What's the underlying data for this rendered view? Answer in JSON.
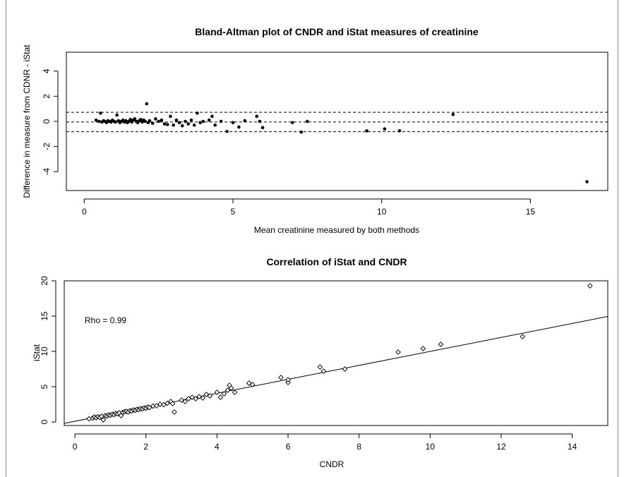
{
  "chart_data": [
    {
      "type": "scatter",
      "title": "Bland-Altman plot of CNDR and iStat measures of creatinine",
      "xlabel": "Mean creatinine measured by both methods",
      "ylabel": "Difference in measure from CDNR - iStat",
      "xlim": [
        -0.6,
        17.6
      ],
      "ylim": [
        -5.5,
        5.5
      ],
      "xticks": [
        0,
        5,
        10,
        15
      ],
      "yticks": [
        -4,
        -2,
        0,
        2,
        4
      ],
      "marker": "filled-circle",
      "color": "#000000",
      "reference_lines": [
        {
          "y": 0.72,
          "style": "dashed"
        },
        {
          "y": -0.05,
          "style": "dashed"
        },
        {
          "y": -0.82,
          "style": "dashed"
        }
      ],
      "points": [
        [
          0.4,
          0.1
        ],
        [
          0.5,
          0.0
        ],
        [
          0.55,
          0.65
        ],
        [
          0.6,
          -0.05
        ],
        [
          0.65,
          0.05
        ],
        [
          0.7,
          0.0
        ],
        [
          0.75,
          -0.1
        ],
        [
          0.8,
          0.05
        ],
        [
          0.85,
          0.0
        ],
        [
          0.9,
          -0.05
        ],
        [
          0.95,
          0.1
        ],
        [
          1.0,
          0.0
        ],
        [
          1.05,
          -0.05
        ],
        [
          1.1,
          0.5
        ],
        [
          1.15,
          0.05
        ],
        [
          1.2,
          -0.1
        ],
        [
          1.25,
          0.0
        ],
        [
          1.3,
          0.1
        ],
        [
          1.35,
          -0.05
        ],
        [
          1.4,
          0.05
        ],
        [
          1.45,
          -0.1
        ],
        [
          1.5,
          0.0
        ],
        [
          1.55,
          0.15
        ],
        [
          1.6,
          -0.05
        ],
        [
          1.65,
          0.1
        ],
        [
          1.7,
          0.2
        ],
        [
          1.75,
          0.0
        ],
        [
          1.8,
          -0.1
        ],
        [
          1.85,
          0.05
        ],
        [
          1.9,
          0.15
        ],
        [
          1.95,
          -0.05
        ],
        [
          2.0,
          0.1
        ],
        [
          2.05,
          0.0
        ],
        [
          2.1,
          1.4
        ],
        [
          2.15,
          -0.1
        ],
        [
          2.2,
          0.05
        ],
        [
          2.3,
          -0.15
        ],
        [
          2.4,
          0.2
        ],
        [
          2.5,
          0.0
        ],
        [
          2.6,
          0.1
        ],
        [
          2.7,
          -0.2
        ],
        [
          2.8,
          -0.25
        ],
        [
          2.9,
          0.4
        ],
        [
          3.0,
          -0.3
        ],
        [
          3.1,
          0.1
        ],
        [
          3.2,
          -0.1
        ],
        [
          3.3,
          -0.35
        ],
        [
          3.4,
          0.0
        ],
        [
          3.5,
          -0.2
        ],
        [
          3.6,
          0.1
        ],
        [
          3.7,
          -0.3
        ],
        [
          3.8,
          0.65
        ],
        [
          3.9,
          -0.1
        ],
        [
          4.0,
          0.0
        ],
        [
          4.2,
          0.1
        ],
        [
          4.3,
          0.4
        ],
        [
          4.4,
          -0.3
        ],
        [
          4.6,
          0.0
        ],
        [
          4.8,
          -0.8
        ],
        [
          5.0,
          -0.1
        ],
        [
          5.2,
          -0.45
        ],
        [
          5.4,
          0.05
        ],
        [
          5.8,
          0.4
        ],
        [
          5.9,
          0.0
        ],
        [
          6.0,
          -0.5
        ],
        [
          7.0,
          -0.1
        ],
        [
          7.3,
          -0.85
        ],
        [
          7.5,
          0.0
        ],
        [
          9.5,
          -0.75
        ],
        [
          10.1,
          -0.6
        ],
        [
          10.6,
          -0.75
        ],
        [
          12.4,
          0.55
        ],
        [
          16.9,
          -4.8
        ]
      ]
    },
    {
      "type": "scatter",
      "title": "Correlation of iStat and CNDR",
      "xlabel": "CNDR",
      "ylabel": "iStat",
      "xlim": [
        -0.3,
        15.0
      ],
      "ylim": [
        -0.5,
        20.0
      ],
      "xticks": [
        0,
        2,
        4,
        6,
        8,
        10,
        12,
        14
      ],
      "yticks": [
        0,
        5,
        10,
        15,
        20
      ],
      "marker": "open-diamond",
      "color": "#000000",
      "annotation": "Rho = 0.99",
      "fit_line": {
        "slope": 0.99,
        "intercept": 0.1
      },
      "points": [
        [
          0.4,
          0.45
        ],
        [
          0.5,
          0.55
        ],
        [
          0.55,
          0.7
        ],
        [
          0.6,
          0.6
        ],
        [
          0.65,
          0.75
        ],
        [
          0.7,
          0.65
        ],
        [
          0.75,
          0.8
        ],
        [
          0.8,
          0.3
        ],
        [
          0.85,
          0.9
        ],
        [
          0.9,
          0.85
        ],
        [
          0.95,
          1.0
        ],
        [
          1.0,
          0.95
        ],
        [
          1.05,
          1.1
        ],
        [
          1.1,
          1.05
        ],
        [
          1.15,
          1.2
        ],
        [
          1.2,
          1.15
        ],
        [
          1.25,
          1.3
        ],
        [
          1.3,
          0.9
        ],
        [
          1.35,
          1.35
        ],
        [
          1.4,
          1.45
        ],
        [
          1.45,
          1.5
        ],
        [
          1.5,
          1.4
        ],
        [
          1.55,
          1.6
        ],
        [
          1.6,
          1.55
        ],
        [
          1.65,
          1.7
        ],
        [
          1.7,
          1.65
        ],
        [
          1.75,
          1.8
        ],
        [
          1.8,
          1.75
        ],
        [
          1.85,
          1.9
        ],
        [
          1.9,
          1.85
        ],
        [
          1.95,
          2.0
        ],
        [
          2.0,
          1.95
        ],
        [
          2.05,
          2.1
        ],
        [
          2.1,
          2.05
        ],
        [
          2.2,
          2.25
        ],
        [
          2.3,
          2.3
        ],
        [
          2.4,
          2.5
        ],
        [
          2.5,
          2.45
        ],
        [
          2.6,
          2.65
        ],
        [
          2.7,
          2.9
        ],
        [
          2.75,
          2.6
        ],
        [
          2.8,
          1.4
        ],
        [
          3.0,
          3.1
        ],
        [
          3.1,
          2.9
        ],
        [
          3.2,
          3.3
        ],
        [
          3.3,
          3.5
        ],
        [
          3.4,
          3.3
        ],
        [
          3.5,
          3.6
        ],
        [
          3.6,
          3.4
        ],
        [
          3.7,
          3.9
        ],
        [
          3.8,
          3.7
        ],
        [
          4.0,
          4.2
        ],
        [
          4.1,
          3.5
        ],
        [
          4.2,
          4.0
        ],
        [
          4.3,
          4.5
        ],
        [
          4.35,
          5.2
        ],
        [
          4.4,
          4.8
        ],
        [
          4.5,
          4.2
        ],
        [
          4.9,
          5.5
        ],
        [
          5.0,
          5.3
        ],
        [
          5.8,
          6.3
        ],
        [
          6.0,
          5.6
        ],
        [
          6.0,
          6.0
        ],
        [
          6.9,
          7.8
        ],
        [
          7.0,
          7.2
        ],
        [
          7.6,
          7.5
        ],
        [
          9.1,
          9.9
        ],
        [
          9.8,
          10.4
        ],
        [
          10.3,
          11.0
        ],
        [
          12.6,
          12.1
        ],
        [
          14.5,
          19.3
        ]
      ]
    }
  ]
}
